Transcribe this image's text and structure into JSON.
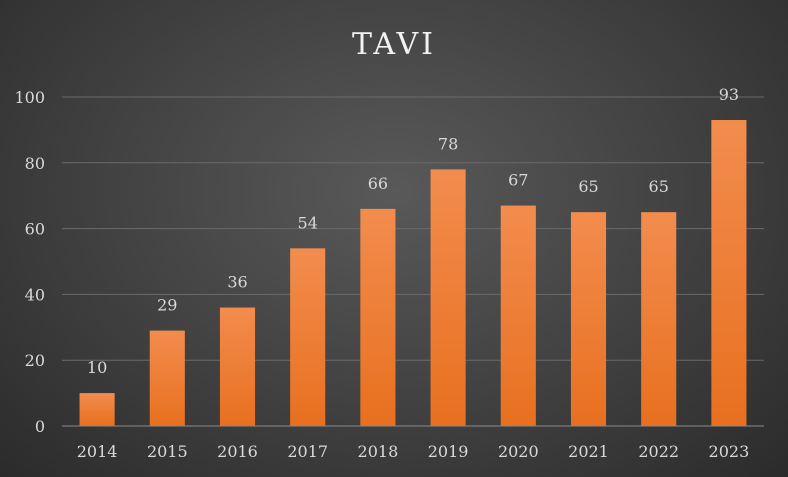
{
  "chart_data": {
    "type": "bar",
    "title": "TAVI",
    "xlabel": "",
    "ylabel": "",
    "categories": [
      "2014",
      "2015",
      "2016",
      "2017",
      "2018",
      "2019",
      "2020",
      "2021",
      "2022",
      "2023"
    ],
    "values": [
      10,
      29,
      36,
      54,
      66,
      78,
      67,
      65,
      65,
      93
    ],
    "ylim": [
      0,
      100
    ],
    "yticks": [
      0,
      20,
      40,
      60,
      80,
      100
    ],
    "grid": true,
    "legend": "none",
    "data_labels": true,
    "colors": {
      "bar_top": "#f28c4e",
      "bar_bottom": "#e8701f",
      "background": "#404040",
      "text": "#d9d9d9",
      "title": "#f2f2f2"
    }
  }
}
